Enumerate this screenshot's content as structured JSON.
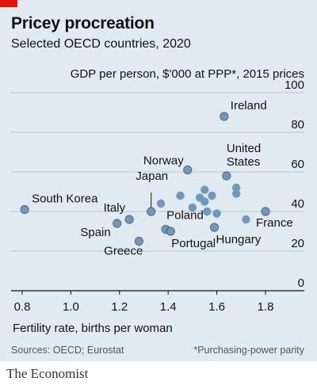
{
  "header": {
    "title": "Pricey procreation",
    "subtitle": "Selected OECD countries, 2020"
  },
  "chart_data": {
    "type": "scatter",
    "title": "Pricey procreation",
    "subtitle": "Selected OECD countries, 2020",
    "xlabel": "Fertility rate, births per woman",
    "ylabel": "GDP per person, $'000 at PPP*, 2015 prices",
    "xlim": [
      0.8,
      1.8
    ],
    "ylim": [
      0,
      100
    ],
    "x_ticks": [
      "0.8",
      "1.0",
      "1.2",
      "1.4",
      "1.6",
      "1.8"
    ],
    "y_ticks": [
      "0",
      "20",
      "40",
      "60",
      "80",
      "100"
    ],
    "grid": "horizontal",
    "point_color": "#6f98bd",
    "axis_color": "#121212",
    "points": [
      {
        "label": "South Korea",
        "x": 0.81,
        "y": 41
      },
      {
        "label": "Italy",
        "x": 1.24,
        "y": 36
      },
      {
        "label": "Spain",
        "x": 1.19,
        "y": 34
      },
      {
        "label": "Greece",
        "x": 1.28,
        "y": 25
      },
      {
        "label": "Japan",
        "x": 1.33,
        "y": 40
      },
      {
        "label": "Poland",
        "x": 1.39,
        "y": 31
      },
      {
        "label": "Portugal",
        "x": 1.41,
        "y": 30
      },
      {
        "label": "Norway",
        "x": 1.48,
        "y": 61
      },
      {
        "label": "Hungary",
        "x": 1.59,
        "y": 32
      },
      {
        "label": "Ireland",
        "x": 1.63,
        "y": 88
      },
      {
        "label": "United States",
        "x": 1.64,
        "y": 58
      },
      {
        "label": "France",
        "x": 1.8,
        "y": 40
      },
      {
        "label": "",
        "x": 1.37,
        "y": 44
      },
      {
        "label": "",
        "x": 1.45,
        "y": 48
      },
      {
        "label": "",
        "x": 1.5,
        "y": 42
      },
      {
        "label": "",
        "x": 1.53,
        "y": 47
      },
      {
        "label": "",
        "x": 1.55,
        "y": 51
      },
      {
        "label": "",
        "x": 1.55,
        "y": 45
      },
      {
        "label": "",
        "x": 1.56,
        "y": 40
      },
      {
        "label": "",
        "x": 1.58,
        "y": 48
      },
      {
        "label": "",
        "x": 1.6,
        "y": 39
      },
      {
        "label": "",
        "x": 1.68,
        "y": 52
      },
      {
        "label": "",
        "x": 1.68,
        "y": 49
      },
      {
        "label": "",
        "x": 1.72,
        "y": 36
      }
    ]
  },
  "footer": {
    "source": "Sources: OECD; Eurostat",
    "footnote": "*Purchasing-power parity",
    "publisher": "The Economist"
  }
}
